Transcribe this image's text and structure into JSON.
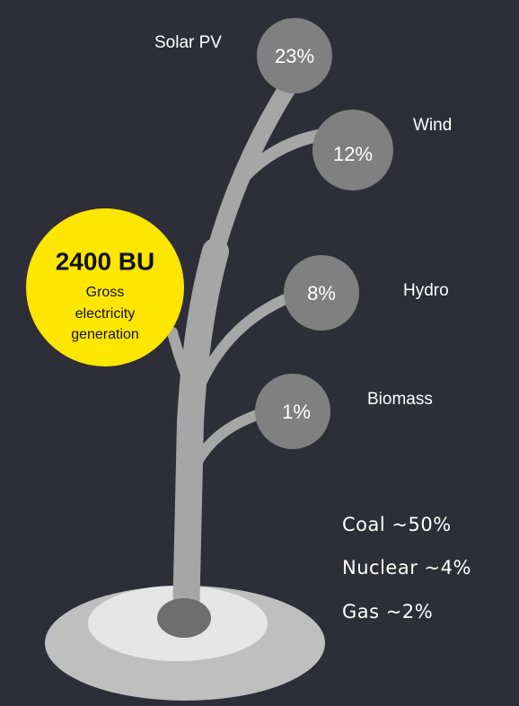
{
  "sources": [
    {
      "label": "Solar PV",
      "share": "23%"
    },
    {
      "label": "Wind",
      "share": "12%"
    },
    {
      "label": "Hydro",
      "share": "8%"
    },
    {
      "label": "Biomass",
      "share": "1%"
    }
  ],
  "total": {
    "value": "2400 BU",
    "caption": [
      "Gross",
      "electricity",
      "generation"
    ]
  },
  "others": [
    "Coal ~50%",
    "Nuclear ~4%",
    "Gas ~2%"
  ]
}
